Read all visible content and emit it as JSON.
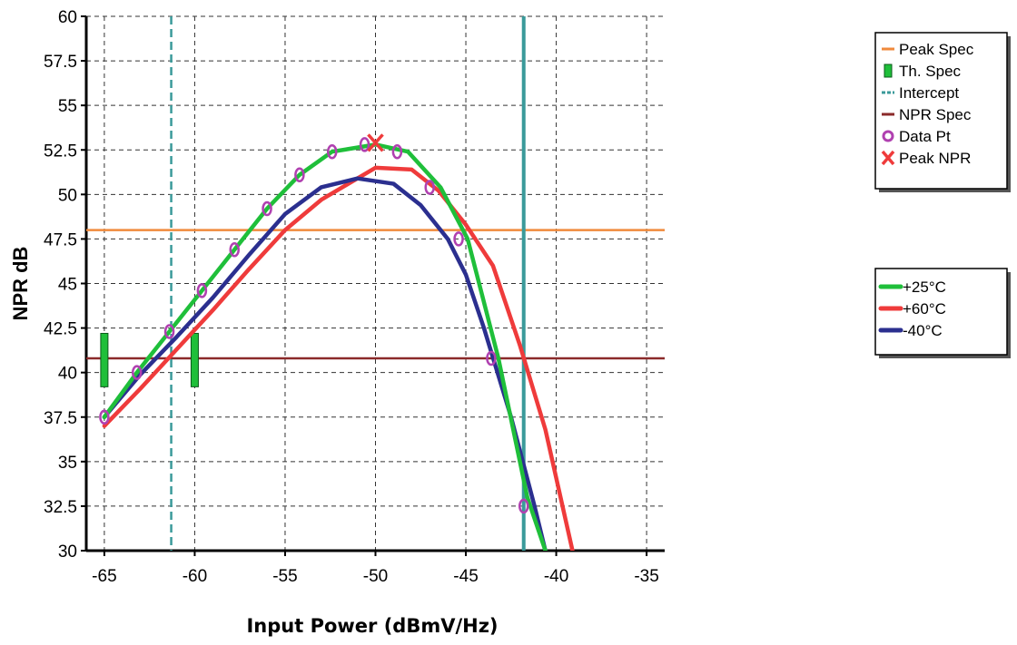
{
  "chart_data": {
    "type": "line",
    "title": "",
    "xlabel": "Input Power (dBmV/Hz)",
    "ylabel": "NPR dB",
    "xlim": [
      -66,
      -34
    ],
    "ylim": [
      30,
      60
    ],
    "xticks": [
      -65,
      -60,
      -55,
      -50,
      -45,
      -40,
      -35
    ],
    "yticks": [
      60,
      57.5,
      55,
      52.5,
      50,
      47.5,
      45,
      42.5,
      40,
      37.5,
      35,
      32.5,
      30
    ],
    "grid": true,
    "colors": {
      "plus25": "#1fbf3a",
      "plus60": "#ef3b3b",
      "minus40": "#2b2f8f",
      "peak_spec": "#f08a3c",
      "npr_spec": "#8b2a2a",
      "intercept": "#3a9a9a",
      "th_spec": "#1fbf3a",
      "data_pt": "#b040b0",
      "peak_npr": "#ef3b3b"
    },
    "series": [
      {
        "name": "+25°C",
        "key": "plus25",
        "x": [
          -65,
          -63.2,
          -61.4,
          -59.6,
          -57.8,
          -56,
          -54.2,
          -52.4,
          -50,
          -48.2,
          -46.4,
          -44.9,
          -43.2,
          -41.6,
          -40.6
        ],
        "y": [
          37.5,
          40,
          42.3,
          44.6,
          46.9,
          49.2,
          51.1,
          52.4,
          52.8,
          52.4,
          50.4,
          47.5,
          40.8,
          33,
          30
        ]
      },
      {
        "name": "+60°C",
        "key": "plus60",
        "x": [
          -65,
          -63,
          -61,
          -59,
          -57,
          -55,
          -53,
          -50,
          -48,
          -46.5,
          -45,
          -43.5,
          -42,
          -40.6,
          -39.1
        ],
        "y": [
          37,
          39.1,
          41.3,
          43.5,
          45.8,
          48,
          49.7,
          51.5,
          51.4,
          50.2,
          48.3,
          46,
          41.5,
          36.8,
          30
        ]
      },
      {
        "name": "-40°C",
        "key": "minus40",
        "x": [
          -65,
          -63,
          -61,
          -59,
          -57,
          -55,
          -53,
          -51,
          -49,
          -47.5,
          -46,
          -45,
          -44,
          -42.5,
          -41.2,
          -40.6
        ],
        "y": [
          37.5,
          39.9,
          42,
          44.2,
          46.6,
          48.9,
          50.4,
          50.9,
          50.6,
          49.4,
          47.5,
          45.5,
          42.5,
          37.5,
          32.5,
          30
        ]
      }
    ],
    "data_points": [
      {
        "x": -65,
        "y": 37.5
      },
      {
        "x": -63.2,
        "y": 40
      },
      {
        "x": -61.4,
        "y": 42.3
      },
      {
        "x": -59.6,
        "y": 44.6
      },
      {
        "x": -57.8,
        "y": 46.9
      },
      {
        "x": -56,
        "y": 49.2
      },
      {
        "x": -54.2,
        "y": 51.1
      },
      {
        "x": -52.4,
        "y": 52.4
      },
      {
        "x": -50.6,
        "y": 52.8
      },
      {
        "x": -48.8,
        "y": 52.4
      },
      {
        "x": -47,
        "y": 50.4
      },
      {
        "x": -45.4,
        "y": 47.5
      },
      {
        "x": -43.6,
        "y": 40.8
      },
      {
        "x": -41.8,
        "y": 32.5
      }
    ],
    "peak_npr": {
      "x": -50,
      "y": 52.9
    },
    "peak_spec": 48,
    "npr_spec": 40.8,
    "intercept_x": -61.3,
    "intercept2_x": -41.8,
    "th_spec": [
      {
        "x": -65,
        "y_low": 39.2,
        "y_high": 42.2
      },
      {
        "x": -60,
        "y_low": 39.2,
        "y_high": 42.2
      }
    ],
    "legend_spec": [
      {
        "label": "Peak Spec",
        "symbol": "hline",
        "key": "peak_spec"
      },
      {
        "label": "Th. Spec",
        "symbol": "vbar",
        "key": "th_spec"
      },
      {
        "label": "Intercept",
        "symbol": "dash",
        "key": "intercept"
      },
      {
        "label": "NPR Spec",
        "symbol": "hline",
        "key": "npr_spec"
      },
      {
        "label": "Data Pt",
        "symbol": "dot",
        "key": "data_pt"
      },
      {
        "label": "Peak NPR",
        "symbol": "x",
        "key": "peak_npr"
      }
    ],
    "legend_series": [
      {
        "label": "+25°C",
        "key": "plus25"
      },
      {
        "label": "+60°C",
        "key": "plus60"
      },
      {
        "label": "-40°C",
        "key": "minus40"
      }
    ]
  }
}
